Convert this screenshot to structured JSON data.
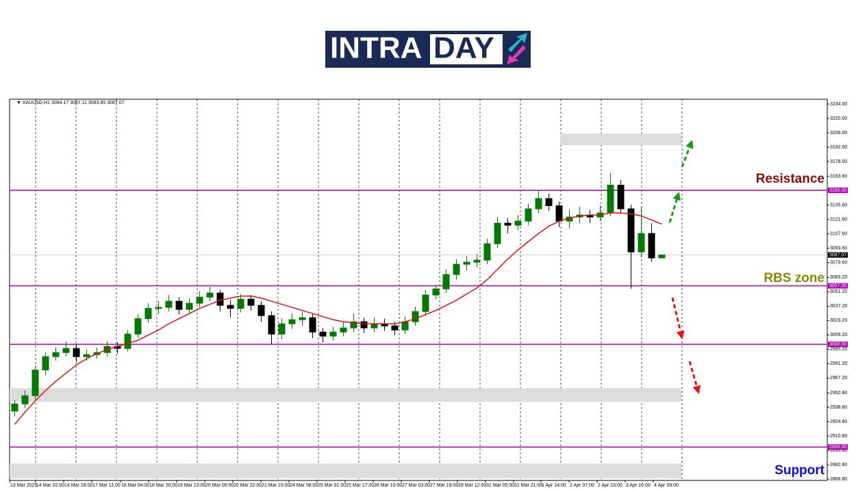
{
  "logo": {
    "left": "INTRA",
    "right": "DAY"
  },
  "chart_data": {
    "type": "candlestick",
    "symbol": "XAUUSD,H1",
    "open": [
      2935,
      2942,
      2950,
      2975,
      2988,
      2992,
      2996,
      2988,
      2990,
      2992,
      2998,
      2996,
      3010,
      3025,
      3035,
      3036,
      3042,
      3034,
      3040,
      3046,
      3050,
      3038,
      3035,
      3044,
      3038,
      3028,
      3010,
      3020,
      3024,
      3026,
      3012,
      3008,
      3012,
      3016,
      3022,
      3016,
      3020,
      3018,
      3014,
      3022,
      3032,
      3048,
      3054,
      3068,
      3078,
      3080,
      3082,
      3098,
      3118,
      3116,
      3120,
      3132,
      3142,
      3135,
      3120,
      3124,
      3126,
      3124,
      3128,
      3155,
      3132,
      3090,
      3108,
      3084.17
    ],
    "high": [
      2946,
      2955,
      2979,
      2992,
      2997,
      3003,
      3000,
      2995,
      2997,
      3003,
      3002,
      3014,
      3029,
      3040,
      3042,
      3048,
      3046,
      3045,
      3052,
      3056,
      3053,
      3043,
      3049,
      3048,
      3042,
      3032,
      3025,
      3030,
      3032,
      3030,
      3016,
      3017,
      3022,
      3030,
      3026,
      3026,
      3025,
      3022,
      3027,
      3037,
      3053,
      3058,
      3073,
      3083,
      3086,
      3088,
      3103,
      3124,
      3123,
      3126,
      3137,
      3150,
      3147,
      3139,
      3131,
      3134,
      3131,
      3135,
      3167,
      3160,
      3136,
      3134,
      3118,
      3087.11
    ],
    "low": [
      2930,
      2938,
      2946,
      2970,
      2984,
      2988,
      2983,
      2984,
      2986,
      2988,
      2991,
      2993,
      3006,
      3021,
      3030,
      3032,
      3029,
      3030,
      3036,
      3042,
      3032,
      3026,
      3031,
      3033,
      3022,
      3000,
      3005,
      3015,
      3018,
      3006,
      3002,
      3004,
      3008,
      3012,
      3011,
      3012,
      3013,
      3009,
      3010,
      3018,
      3028,
      3044,
      3050,
      3063,
      3072,
      3075,
      3078,
      3094,
      3108,
      3111,
      3116,
      3128,
      3130,
      3114,
      3113,
      3118,
      3118,
      3120,
      3125,
      3127,
      3054,
      3085,
      3080,
      3083.85
    ],
    "close": [
      2942,
      2950,
      2975,
      2988,
      2992,
      2996,
      2988,
      2990,
      2992,
      2998,
      2996,
      3010,
      3025,
      3035,
      3036,
      3042,
      3034,
      3040,
      3046,
      3050,
      3038,
      3035,
      3044,
      3038,
      3028,
      3010,
      3020,
      3024,
      3026,
      3012,
      3008,
      3012,
      3016,
      3022,
      3016,
      3020,
      3018,
      3014,
      3022,
      3032,
      3048,
      3054,
      3068,
      3078,
      3080,
      3082,
      3098,
      3118,
      3116,
      3120,
      3132,
      3142,
      3135,
      3120,
      3124,
      3126,
      3124,
      3128,
      3155,
      3132,
      3090,
      3108,
      3084.17,
      3087.07
    ],
    "up_color": "#007a00",
    "down_color": "#000000",
    "ma": {
      "color": "#e01010",
      "values": [
        2922,
        2934,
        2945,
        2955,
        2964,
        2972,
        2980,
        2986,
        2991,
        2995,
        2998,
        3001,
        3004,
        3009,
        3014,
        3020,
        3025,
        3030,
        3035,
        3039,
        3043,
        3045,
        3047,
        3047,
        3045,
        3042,
        3039,
        3036,
        3033,
        3030,
        3027,
        3024,
        3022,
        3021,
        3020,
        3020,
        3020,
        3020,
        3022,
        3025,
        3029,
        3033,
        3038,
        3043,
        3049,
        3055,
        3063,
        3073,
        3083,
        3092,
        3100,
        3108,
        3115,
        3120,
        3123,
        3125,
        3126,
        3126,
        3128,
        3128,
        3127,
        3125,
        3121,
        3117
      ]
    },
    "ylim": [
      2867.5,
      3238.7
    ],
    "yticks": [
      {
        "value": 3234,
        "label": "3234.00"
      },
      {
        "value": 3220,
        "label": "3220.00"
      },
      {
        "value": 3206,
        "label": "3206.00"
      },
      {
        "value": 3192,
        "label": "3192.00"
      },
      {
        "value": 3178,
        "label": "3178.00"
      },
      {
        "value": 3163.6,
        "label": "3163.60"
      },
      {
        "value": 3135.6,
        "label": "3135.60"
      },
      {
        "value": 3121.6,
        "label": "3121.60"
      },
      {
        "value": 3107.6,
        "label": "3107.60"
      },
      {
        "value": 3093.6,
        "label": "3093.60"
      },
      {
        "value": 3079.6,
        "label": "3079.60"
      },
      {
        "value": 3065.2,
        "label": "3065.20"
      },
      {
        "value": 3051.2,
        "label": "3051.20"
      },
      {
        "value": 3037.2,
        "label": "3037.20"
      },
      {
        "value": 3023.2,
        "label": "3023.20"
      },
      {
        "value": 3009.2,
        "label": "3009.20"
      },
      {
        "value": 2995.2,
        "label": "2995.20"
      },
      {
        "value": 2981.2,
        "label": "2981.20"
      },
      {
        "value": 2967.2,
        "label": "2967.20"
      },
      {
        "value": 2952.8,
        "label": "2952.80"
      },
      {
        "value": 2938.8,
        "label": "2938.80"
      },
      {
        "value": 2924.8,
        "label": "2924.80"
      },
      {
        "value": 2910.8,
        "label": "2910.80"
      },
      {
        "value": 2896.8,
        "label": "2896.80"
      },
      {
        "value": 2882.8,
        "label": "2882.80"
      },
      {
        "value": 2868.8,
        "label": "2868.80"
      }
    ],
    "xlim": [
      -0.5,
      79.1
    ],
    "xticks": [
      {
        "value": -0.5,
        "label": "13 Mar 2025"
      },
      {
        "value": 2.03,
        "label": "14 Mar 02:00"
      },
      {
        "value": 4.77,
        "label": "14 Mar 18:00"
      },
      {
        "value": 7.5,
        "label": "17 Mar 11:00"
      },
      {
        "value": 10.3,
        "label": "18 Mar 04:00"
      },
      {
        "value": 13.03,
        "label": "18 Mar 20:00"
      },
      {
        "value": 15.77,
        "label": "19 Mar 13:00"
      },
      {
        "value": 18.5,
        "label": "20 Mar 06:00"
      },
      {
        "value": 21.23,
        "label": "20 Mar 22:00"
      },
      {
        "value": 23.97,
        "label": "21 Mar 15:00"
      },
      {
        "value": 26.7,
        "label": "24 Mar 08:00"
      },
      {
        "value": 29.43,
        "label": "25 Mar 01:00"
      },
      {
        "value": 32.17,
        "label": "25 Mar 17:00"
      },
      {
        "value": 34.9,
        "label": "26 Mar 10:00"
      },
      {
        "value": 37.63,
        "label": "27 Mar 03:00"
      },
      {
        "value": 40.37,
        "label": "27 Mar 19:00"
      },
      {
        "value": 43.1,
        "label": "28 Mar 12:00"
      },
      {
        "value": 45.83,
        "label": "31 Mar 05:00"
      },
      {
        "value": 48.57,
        "label": "31 Mar 21:00"
      },
      {
        "value": 51.23,
        "label": "1 Apr 14:00"
      },
      {
        "value": 53.97,
        "label": "2 Apr 07:00"
      },
      {
        "value": 56.7,
        "label": "2 Apr 23:00"
      },
      {
        "value": 59.43,
        "label": "3 Apr 16:00"
      },
      {
        "value": 62.17,
        "label": "4 Apr 09:00"
      }
    ],
    "levels": [
      {
        "value": 3150,
        "label": "3150.00"
      },
      {
        "value": 3057,
        "label": "3057.00"
      },
      {
        "value": 3000,
        "label": "3000.00"
      },
      {
        "value": 2900,
        "label": "2900.00"
      }
    ],
    "level_color": "#b000b0",
    "zones": [
      {
        "from": 3194,
        "to": 3205.3,
        "x_from": 53.1,
        "x_to": 64.9
      },
      {
        "from": 2944,
        "to": 2957.3,
        "x_from": -0.5,
        "x_to": 64.9
      },
      {
        "from": 2869.7,
        "to": 2884,
        "x_from": -0.5,
        "x_to": 64.9
      }
    ],
    "annotations": [
      {
        "text": "Resistance",
        "color": "#8b0a0a"
      },
      {
        "text": "RBS zone",
        "color": "#8b8b00"
      },
      {
        "text": "Support",
        "color": "#0a0ae6"
      }
    ]
  }
}
